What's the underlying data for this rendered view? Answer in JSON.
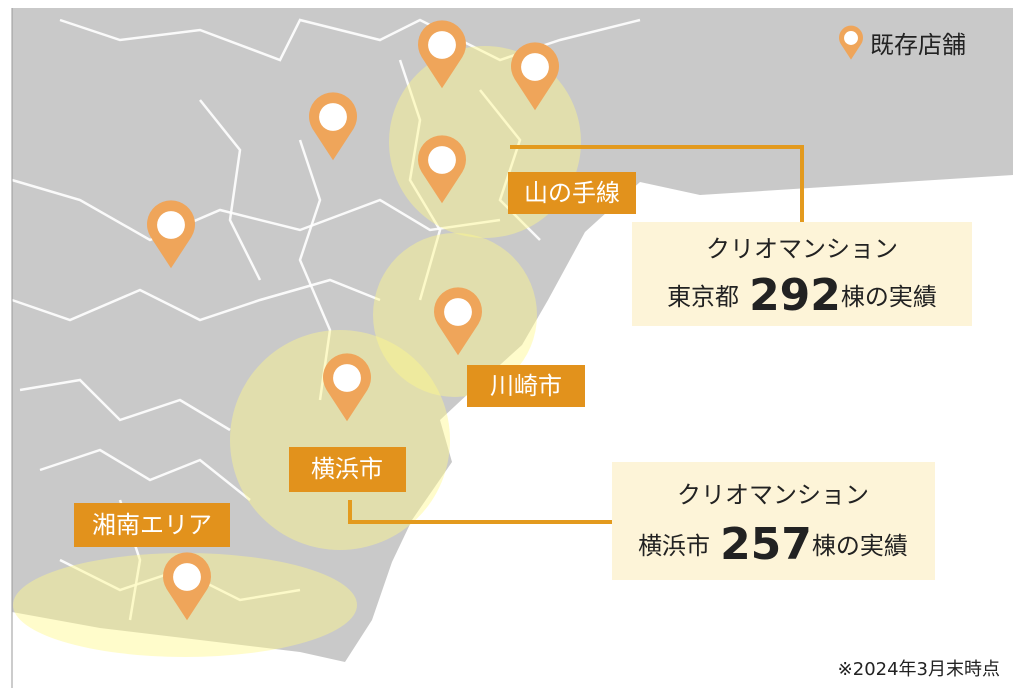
{
  "legend": {
    "label": "既存店舗"
  },
  "areas": [
    {
      "label": "山の手線"
    },
    {
      "label": "川崎市"
    },
    {
      "label": "横浜市"
    },
    {
      "label": "湘南エリア"
    }
  ],
  "callouts": [
    {
      "title": "クリオマンション",
      "city": "東京都",
      "count": 292,
      "suffix": "棟の実績"
    },
    {
      "title": "クリオマンション",
      "city": "横浜市",
      "count": 257,
      "suffix": "棟の実績"
    }
  ],
  "footnote": "※2024年3月末時点"
}
